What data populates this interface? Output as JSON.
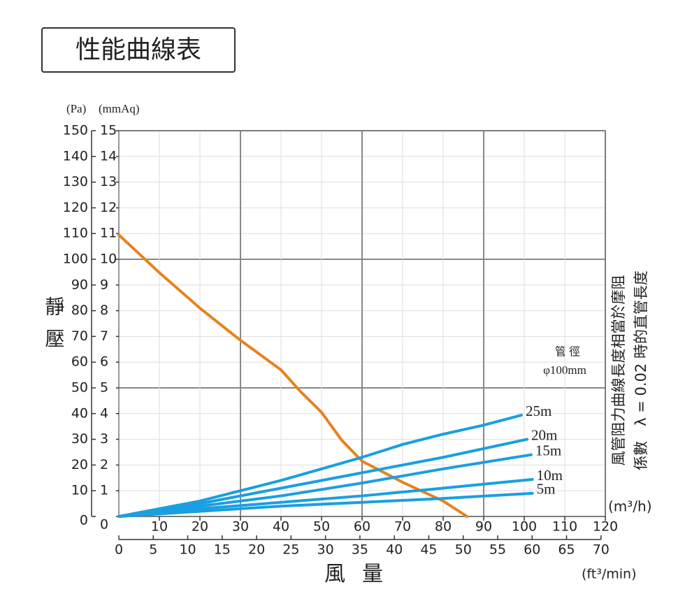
{
  "chart_data": {
    "type": "line",
    "title": "性能曲線表",
    "ylabel": "(Pa)",
    "y2label": "(mmAq)",
    "y_title": "靜壓",
    "x_title": "風量",
    "xlabel": "(m³/h)",
    "x2label": "(ft³/min)",
    "xlim": [
      0,
      120
    ],
    "xticks": [
      10,
      20,
      30,
      40,
      50,
      60,
      70,
      80,
      90,
      100,
      110,
      120
    ],
    "x2lim": [
      0,
      70.63
    ],
    "x2ticks": [
      0,
      5,
      10,
      15,
      20,
      25,
      30,
      35,
      40,
      45,
      50,
      55,
      60,
      65,
      70
    ],
    "ylim": [
      0,
      150
    ],
    "yticks": [
      0,
      10,
      20,
      30,
      40,
      50,
      60,
      70,
      80,
      90,
      100,
      110,
      120,
      130,
      140,
      150
    ],
    "y2lim": [
      0,
      15
    ],
    "y2ticks": [
      0,
      1,
      2,
      3,
      4,
      5,
      6,
      7,
      8,
      9,
      10,
      11,
      12,
      13,
      14,
      15
    ],
    "grid": true,
    "x_major_step": 30,
    "y_major_step": 50,
    "series": [
      {
        "name": null,
        "color": "#e8821e",
        "x": [
          0,
          10,
          20,
          30,
          40,
          44.8,
          50,
          55,
          60,
          70,
          80,
          85.9
        ],
        "values": [
          109.5,
          94.8,
          81,
          68.5,
          57,
          48.6,
          40.5,
          29.6,
          21.5,
          13.3,
          6,
          0
        ]
      },
      {
        "name": "25m",
        "color": "#1a9fe0",
        "x": [
          0,
          10,
          20,
          30,
          40,
          50,
          60,
          70,
          80,
          90,
          99.3
        ],
        "values": [
          0,
          3,
          6,
          10,
          14,
          18.5,
          23,
          28,
          32,
          35.5,
          39.4
        ]
      },
      {
        "name": "20m",
        "color": "#1a9fe0",
        "x": [
          0,
          20,
          40,
          60,
          80,
          100.7
        ],
        "values": [
          0,
          5,
          11,
          17,
          23,
          30
        ]
      },
      {
        "name": "15m",
        "color": "#1a9fe0",
        "x": [
          0,
          20,
          40,
          60,
          80,
          101.7
        ],
        "values": [
          0,
          4,
          8,
          13,
          18.5,
          24
        ]
      },
      {
        "name": "10m",
        "color": "#1a9fe0",
        "x": [
          0,
          20,
          40,
          60,
          80,
          102
        ],
        "values": [
          0,
          3,
          5.5,
          8,
          11,
          14.4
        ]
      },
      {
        "name": "5m",
        "color": "#1a9fe0",
        "x": [
          0,
          20,
          40,
          60,
          80,
          102
        ],
        "values": [
          0,
          2,
          4,
          5.5,
          7,
          9
        ]
      }
    ],
    "annotations": {
      "duct": "管 徑",
      "duct_size": "φ100mm",
      "note_line1": "風管阻力曲線長度相當於摩阻",
      "note_line2": "係數　λ = 0.02 時的直管長度"
    }
  }
}
